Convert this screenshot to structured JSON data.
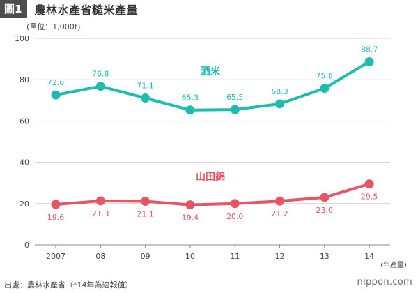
{
  "header": {
    "badge": "圖1",
    "title": "農林水產省糙米產量"
  },
  "unit_label": "(單位：1,000t)",
  "footer": {
    "source": "出處：農林水產省（*14年為速報值）",
    "logo": "nippon.com"
  },
  "chart_data": {
    "type": "line",
    "categories": [
      "2007",
      "08",
      "09",
      "10",
      "11",
      "12",
      "13",
      "14"
    ],
    "x_unit_label": "(年產量)",
    "ylim": [
      0,
      100
    ],
    "yticks": [
      0,
      20,
      40,
      60,
      80,
      100
    ],
    "grid": true,
    "series": [
      {
        "name": "酒米",
        "color": "#1dbcb0",
        "values": [
          72.6,
          76.8,
          71.1,
          65.3,
          65.5,
          68.3,
          75.8,
          88.7
        ],
        "labels": [
          "72.6",
          "76.8",
          "71.1",
          "65.3",
          "65.5",
          "68.3",
          "75.8",
          "88.7"
        ],
        "label_position": "above"
      },
      {
        "name": "山田錦",
        "color": "#e95464",
        "values": [
          19.6,
          21.3,
          21.1,
          19.4,
          20.0,
          21.2,
          23.0,
          29.5
        ],
        "labels": [
          "19.6",
          "21.3",
          "21.1",
          "19.4",
          "20.0",
          "21.2",
          "23.0",
          "29.5"
        ],
        "label_position": "below"
      }
    ]
  }
}
